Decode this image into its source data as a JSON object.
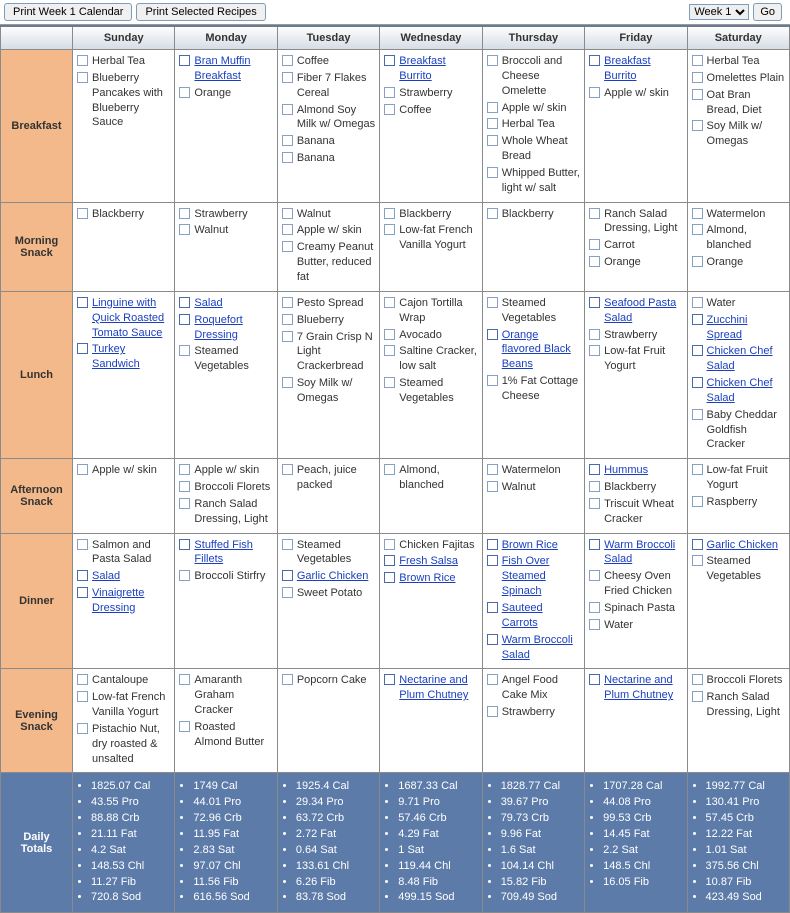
{
  "toolbar": {
    "print_week": "Print Week 1 Calendar",
    "print_selected": "Print Selected Recipes",
    "week_selected": "Week 1",
    "go": "Go"
  },
  "days": [
    "Sunday",
    "Monday",
    "Tuesday",
    "Wednesday",
    "Thursday",
    "Friday",
    "Saturday"
  ],
  "meals": [
    {
      "key": "breakfast",
      "label": "Breakfast"
    },
    {
      "key": "morning_snack",
      "label": "Morning Snack"
    },
    {
      "key": "lunch",
      "label": "Lunch"
    },
    {
      "key": "afternoon_snack",
      "label": "Afternoon Snack"
    },
    {
      "key": "dinner",
      "label": "Dinner"
    },
    {
      "key": "evening_snack",
      "label": "Evening Snack"
    }
  ],
  "plan": {
    "breakfast": [
      [
        {
          "t": "Herbal Tea"
        },
        {
          "t": "Blueberry Pancakes with Blueberry Sauce"
        }
      ],
      [
        {
          "t": "Bran Muffin Breakfast",
          "l": true
        },
        {
          "t": "Orange"
        }
      ],
      [
        {
          "t": "Coffee"
        },
        {
          "t": "Fiber 7 Flakes Cereal"
        },
        {
          "t": "Almond Soy Milk w/ Omegas"
        },
        {
          "t": "Banana"
        },
        {
          "t": "Banana"
        }
      ],
      [
        {
          "t": "Breakfast Burrito",
          "l": true
        },
        {
          "t": "Strawberry"
        },
        {
          "t": "Coffee"
        }
      ],
      [
        {
          "t": "Broccoli and Cheese Omelette"
        },
        {
          "t": "Apple w/ skin"
        },
        {
          "t": "Herbal Tea"
        },
        {
          "t": "Whole Wheat Bread"
        },
        {
          "t": "Whipped Butter, light w/ salt"
        }
      ],
      [
        {
          "t": "Breakfast Burrito",
          "l": true
        },
        {
          "t": "Apple w/ skin"
        }
      ],
      [
        {
          "t": "Herbal Tea"
        },
        {
          "t": "Omelettes Plain"
        },
        {
          "t": "Oat Bran Bread, Diet"
        },
        {
          "t": "Soy Milk w/ Omegas"
        }
      ]
    ],
    "morning_snack": [
      [
        {
          "t": "Blackberry"
        }
      ],
      [
        {
          "t": "Strawberry"
        },
        {
          "t": "Walnut"
        }
      ],
      [
        {
          "t": "Walnut"
        },
        {
          "t": "Apple w/ skin"
        },
        {
          "t": "Creamy Peanut Butter, reduced fat"
        }
      ],
      [
        {
          "t": "Blackberry"
        },
        {
          "t": "Low-fat French Vanilla Yogurt"
        }
      ],
      [
        {
          "t": "Blackberry"
        }
      ],
      [
        {
          "t": "Ranch Salad Dressing, Light"
        },
        {
          "t": "Carrot"
        },
        {
          "t": "Orange"
        }
      ],
      [
        {
          "t": "Watermelon"
        },
        {
          "t": "Almond, blanched"
        },
        {
          "t": "Orange"
        }
      ]
    ],
    "lunch": [
      [
        {
          "t": "Linguine with Quick Roasted Tomato Sauce",
          "l": true
        },
        {
          "t": "Turkey Sandwich",
          "l": true
        }
      ],
      [
        {
          "t": "Salad",
          "l": true
        },
        {
          "t": "Roquefort Dressing",
          "l": true
        },
        {
          "t": "Steamed Vegetables"
        }
      ],
      [
        {
          "t": "Pesto Spread"
        },
        {
          "t": "Blueberry"
        },
        {
          "t": "7 Grain Crisp N Light Crackerbread"
        },
        {
          "t": "Soy Milk w/ Omegas"
        }
      ],
      [
        {
          "t": "Cajon Tortilla Wrap"
        },
        {
          "t": "Avocado"
        },
        {
          "t": "Saltine Cracker, low salt"
        },
        {
          "t": "Steamed Vegetables"
        }
      ],
      [
        {
          "t": "Steamed Vegetables"
        },
        {
          "t": "Orange flavored Black Beans",
          "l": true
        },
        {
          "t": "1% Fat Cottage Cheese"
        }
      ],
      [
        {
          "t": "Seafood Pasta Salad",
          "l": true
        },
        {
          "t": "Strawberry"
        },
        {
          "t": "Low-fat Fruit Yogurt"
        }
      ],
      [
        {
          "t": "Water"
        },
        {
          "t": "Zucchini Spread",
          "l": true
        },
        {
          "t": "Chicken Chef Salad",
          "l": true
        },
        {
          "t": "Chicken Chef Salad",
          "l": true
        },
        {
          "t": "Baby Cheddar Goldfish Cracker"
        }
      ]
    ],
    "afternoon_snack": [
      [
        {
          "t": "Apple w/ skin"
        }
      ],
      [
        {
          "t": "Apple w/ skin"
        },
        {
          "t": "Broccoli Florets"
        },
        {
          "t": "Ranch Salad Dressing, Light"
        }
      ],
      [
        {
          "t": "Peach, juice packed"
        }
      ],
      [
        {
          "t": "Almond, blanched"
        }
      ],
      [
        {
          "t": "Watermelon"
        },
        {
          "t": "Walnut"
        }
      ],
      [
        {
          "t": "Hummus",
          "l": true
        },
        {
          "t": "Blackberry"
        },
        {
          "t": "Triscuit Wheat Cracker"
        }
      ],
      [
        {
          "t": "Low-fat Fruit Yogurt"
        },
        {
          "t": "Raspberry"
        }
      ]
    ],
    "dinner": [
      [
        {
          "t": "Salmon and Pasta Salad"
        },
        {
          "t": "Salad",
          "l": true
        },
        {
          "t": "Vinaigrette Dressing",
          "l": true
        }
      ],
      [
        {
          "t": "Stuffed Fish Fillets",
          "l": true
        },
        {
          "t": "Broccoli Stirfry"
        }
      ],
      [
        {
          "t": "Steamed Vegetables"
        },
        {
          "t": "Garlic Chicken",
          "l": true
        },
        {
          "t": "Sweet Potato"
        }
      ],
      [
        {
          "t": "Chicken Fajitas"
        },
        {
          "t": "Fresh Salsa",
          "l": true
        },
        {
          "t": "Brown Rice",
          "l": true
        }
      ],
      [
        {
          "t": "Brown Rice",
          "l": true
        },
        {
          "t": "Fish Over Steamed Spinach",
          "l": true
        },
        {
          "t": "Sauteed Carrots",
          "l": true
        },
        {
          "t": "Warm Broccoli Salad",
          "l": true
        }
      ],
      [
        {
          "t": "Warm Broccoli Salad",
          "l": true
        },
        {
          "t": "Cheesy Oven Fried Chicken"
        },
        {
          "t": "Spinach Pasta"
        },
        {
          "t": "Water"
        }
      ],
      [
        {
          "t": "Garlic Chicken",
          "l": true
        },
        {
          "t": "Steamed Vegetables"
        }
      ]
    ],
    "evening_snack": [
      [
        {
          "t": "Cantaloupe"
        },
        {
          "t": "Low-fat French Vanilla Yogurt"
        },
        {
          "t": "Pistachio Nut, dry roasted & unsalted"
        }
      ],
      [
        {
          "t": "Amaranth Graham Cracker"
        },
        {
          "t": "Roasted Almond Butter"
        }
      ],
      [
        {
          "t": "Popcorn Cake"
        }
      ],
      [
        {
          "t": "Nectarine and Plum Chutney",
          "l": true
        }
      ],
      [
        {
          "t": "Angel Food Cake Mix"
        },
        {
          "t": "Strawberry"
        }
      ],
      [
        {
          "t": "Nectarine and Plum Chutney",
          "l": true
        }
      ],
      [
        {
          "t": "Broccoli Florets"
        },
        {
          "t": "Ranch Salad Dressing, Light"
        }
      ]
    ]
  },
  "totals_label": "Daily Totals",
  "totals": [
    [
      "1825.07 Cal",
      "43.55 Pro",
      "88.88 Crb",
      "21.11 Fat",
      "4.2 Sat",
      "148.53 Chl",
      "11.27 Fib",
      "720.8 Sod"
    ],
    [
      "1749 Cal",
      "44.01 Pro",
      "72.96 Crb",
      "11.95 Fat",
      "2.83 Sat",
      "97.07 Chl",
      "11.56 Fib",
      "616.56 Sod"
    ],
    [
      "1925.4 Cal",
      "29.34 Pro",
      "63.72 Crb",
      "2.72 Fat",
      "0.64 Sat",
      "133.61 Chl",
      "6.26 Fib",
      "83.78 Sod"
    ],
    [
      "1687.33 Cal",
      "9.71 Pro",
      "57.46 Crb",
      "4.29 Fat",
      "1 Sat",
      "119.44 Chl",
      "8.48 Fib",
      "499.15 Sod"
    ],
    [
      "1828.77 Cal",
      "39.67 Pro",
      "79.73 Crb",
      "9.96 Fat",
      "1.6 Sat",
      "104.14 Chl",
      "15.82 Fib",
      "709.49 Sod"
    ],
    [
      "1707.28 Cal",
      "44.08 Pro",
      "99.53 Crb",
      "14.45 Fat",
      "2.2 Sat",
      "148.5 Chl",
      "16.05 Fib"
    ],
    [
      "1992.77 Cal",
      "130.41 Pro",
      "57.45 Crb",
      "12.22 Fat",
      "1.01 Sat",
      "375.56 Chl",
      "10.87 Fib",
      "423.49 Sod"
    ]
  ]
}
